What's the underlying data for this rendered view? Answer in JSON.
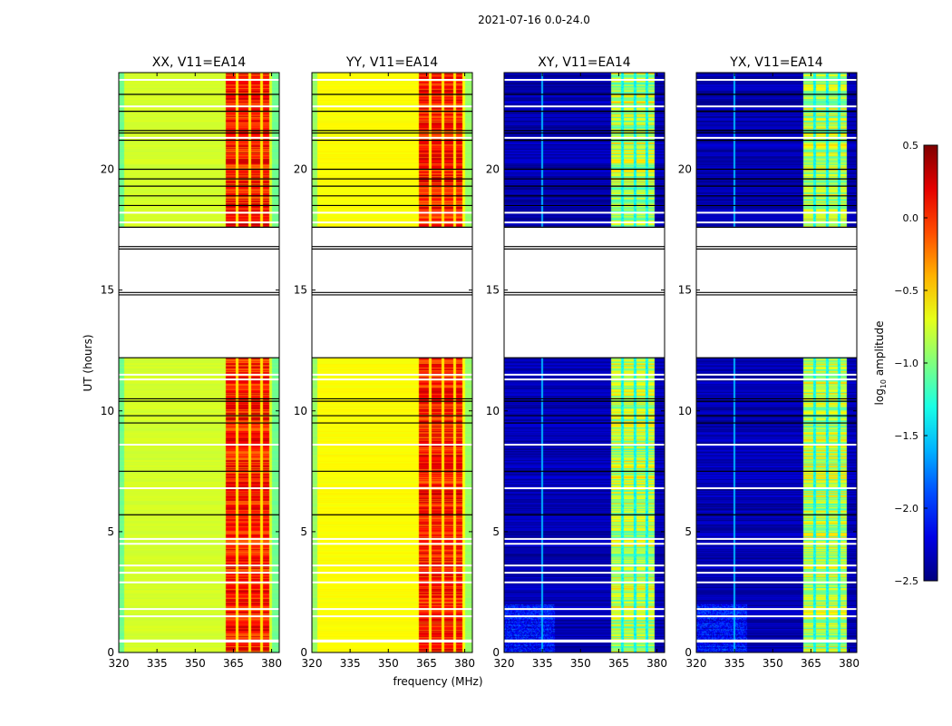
{
  "chart_data": {
    "type": "heatmap",
    "suptitle": "2021-07-16 0.0-24.0",
    "xlabel": "frequency (MHz)",
    "ylabel": "UT (hours)",
    "xlim": [
      320,
      383
    ],
    "ylim": [
      0,
      24
    ],
    "xticks": [
      320,
      335,
      350,
      365,
      380
    ],
    "yticks": [
      0,
      5,
      10,
      15,
      20
    ],
    "panels": [
      {
        "title": "XX, V11=EA14",
        "kind": "parallel"
      },
      {
        "title": "YY, V11=EA14",
        "kind": "parallel"
      },
      {
        "title": "XY, V11=EA14",
        "kind": "cross"
      },
      {
        "title": "YX, V11=EA14",
        "kind": "cross"
      }
    ],
    "data_segments_hours": [
      [
        0,
        12.2
      ],
      [
        17.6,
        24
      ]
    ],
    "flag_lines_black_hours": [
      23.1,
      22.4,
      21.6,
      21.5,
      21.2,
      20.0,
      19.6,
      19.3,
      18.9,
      18.5,
      17.6,
      16.8,
      16.7,
      14.9,
      14.8,
      12.2,
      10.5,
      10.4,
      9.8,
      9.5,
      7.5,
      5.7
    ],
    "flag_lines_white_hours": [
      23.7,
      22.6,
      21.3,
      18.2,
      17.8,
      11.5,
      11.3,
      8.6,
      6.8,
      4.7,
      4.5,
      3.6,
      3.3,
      2.9,
      1.8,
      1.5,
      0.5,
      0.45
    ],
    "rfi_band_mhz": [
      362,
      379
    ],
    "colorbar": {
      "label": "log10 amplitude",
      "range": [
        -2.5,
        0.5
      ],
      "ticks": [
        "0.5",
        "0.0",
        "−0.5",
        "−1.0",
        "−1.5",
        "−2.0",
        "−2.5"
      ],
      "tick_values": [
        0.5,
        0.0,
        -0.5,
        -1.0,
        -1.5,
        -2.0,
        -2.5
      ],
      "colormap": "jet"
    }
  }
}
